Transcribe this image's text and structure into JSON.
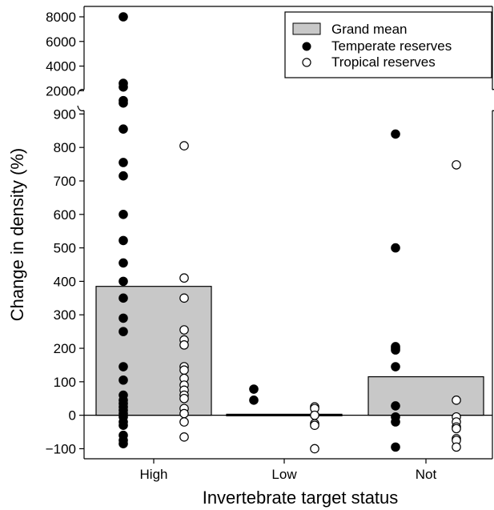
{
  "chart_data": {
    "type": "bar",
    "xlabel": "Invertebrate target status",
    "ylabel": "Change in density (%)",
    "categories": [
      "High",
      "Low",
      "Not"
    ],
    "grand_mean": [
      385,
      3,
      115
    ],
    "ylim_lower": [
      -130,
      920
    ],
    "ylim_upper": [
      1500,
      8000
    ],
    "lower_ticks": [
      -100,
      0,
      100,
      200,
      300,
      400,
      500,
      600,
      700,
      800,
      900
    ],
    "lower_tick_labels": [
      "−100",
      "0",
      "100",
      "200",
      "300",
      "400",
      "500",
      "600",
      "700",
      "800",
      "900"
    ],
    "upper_ticks": [
      2000,
      4000,
      6000,
      8000
    ],
    "upper_tick_labels": [
      "2000",
      "4000",
      "6000",
      "8000"
    ],
    "legend": {
      "position": "top-right",
      "entries": [
        "Grand mean",
        "Temperate reserves",
        "Tropical reserves"
      ]
    },
    "series": [
      {
        "name": "Temperate reserves",
        "marker": "filled",
        "points": {
          "High": [
            8000,
            2600,
            2300,
            1200,
            1000,
            855,
            755,
            715,
            600,
            522,
            455,
            400,
            350,
            290,
            250,
            145,
            105,
            60,
            45,
            35,
            25,
            15,
            5,
            -5,
            -20,
            -30,
            -60,
            -75,
            -85
          ],
          "Low": [
            78,
            45
          ],
          "Not": [
            840,
            500,
            205,
            200,
            195,
            145,
            28,
            -5,
            -20,
            -95
          ]
        }
      },
      {
        "name": "Tropical reserves",
        "marker": "open",
        "points": {
          "High": [
            805,
            410,
            350,
            255,
            225,
            210,
            145,
            135,
            110,
            90,
            75,
            60,
            50,
            20,
            5,
            -20,
            -65
          ],
          "Low": [
            25,
            20,
            0,
            -25,
            -30,
            -100
          ],
          "Not": [
            748,
            45,
            -5,
            -20,
            -35,
            -40,
            -70,
            -75,
            -95
          ]
        }
      }
    ],
    "colors": {
      "bar_fill": "#c8c8c8",
      "stroke": "#000000",
      "open_fill": "#ffffff"
    }
  }
}
